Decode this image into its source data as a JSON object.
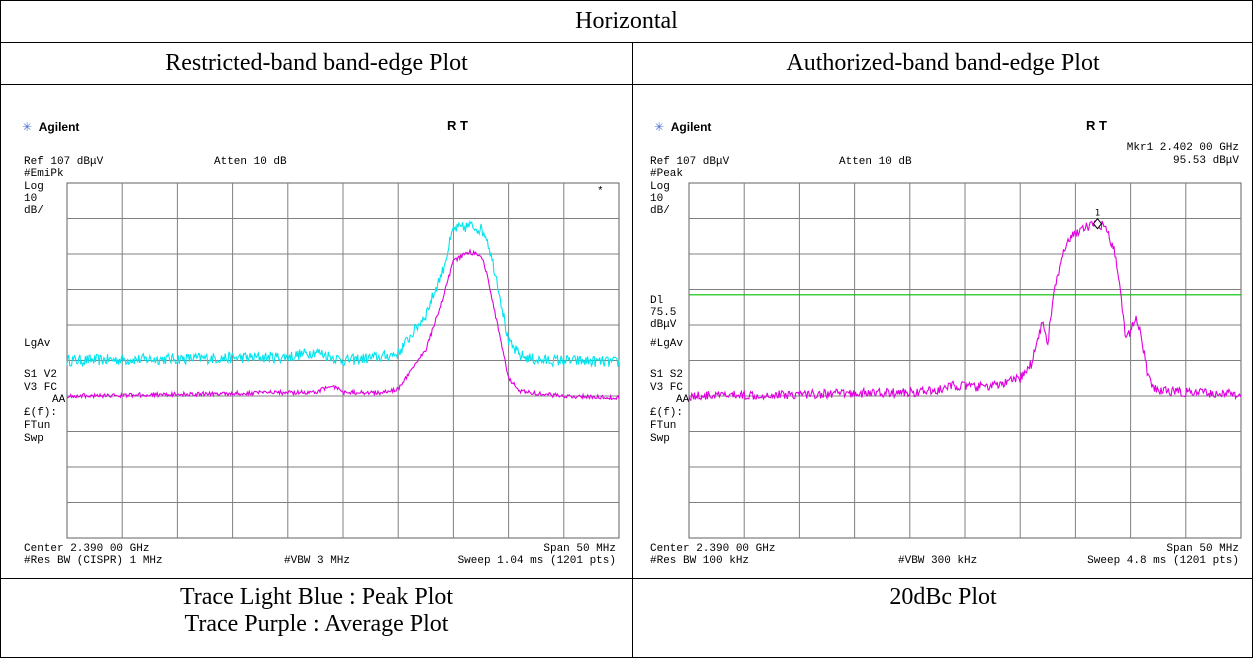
{
  "header": "Horizontal",
  "titles": {
    "left": "Restricted-band band-edge Plot",
    "right": "Authorized-band band-edge Plot"
  },
  "captions": {
    "left_line1": "Trace Light Blue : Peak Plot",
    "left_line2": "Trace Purple : Average Plot",
    "right": "20dBc Plot"
  },
  "colors": {
    "peak_trace": "#00e5ee",
    "avg_trace": "#e000e0",
    "display_line": "#00c000",
    "grid": "#808080"
  },
  "left_plot": {
    "brand": "Agilent",
    "rt": "R  T",
    "ref": "Ref 107 dBμV",
    "atten": "Atten 10 dB",
    "detector": "#EmiPk",
    "scale_type": "Log",
    "scale_value": "10",
    "scale_unit": "dB/",
    "lgav": "LgAv",
    "s1": "S1  V2",
    "v3": "V3  FC",
    "aa": "AA",
    "ef": "£(f):",
    "ftun": "FTun",
    "swp": "Swp",
    "star": "*",
    "center": "Center 2.390 00 GHz",
    "span": "Span 50 MHz",
    "rbw": "#Res BW (CISPR) 1 MHz",
    "vbw": "#VBW 3 MHz",
    "sweep": "Sweep 1.04 ms (1201 pts)"
  },
  "right_plot": {
    "brand": "Agilent",
    "rt": "R  T",
    "marker_freq": "Mkr1  2.402 00 GHz",
    "marker_level": "95.53 dBμV",
    "marker_num": "1",
    "ref": "Ref 107 dBμV",
    "atten": "Atten 10 dB",
    "detector": "#Peak",
    "scale_type": "Log",
    "scale_value": "10",
    "scale_unit": "dB/",
    "dl": "Dl",
    "dl_value": "75.5",
    "dl_unit": "dBμV",
    "lgav": "#LgAv",
    "s1": "S1  S2",
    "v3": "V3  FC",
    "aa": "AA",
    "ef": "£(f):",
    "ftun": "FTun",
    "swp": "Swp",
    "center": "Center 2.390 00 GHz",
    "span": "Span 50 MHz",
    "rbw": "#Res BW 100 kHz",
    "vbw": "#VBW 300 kHz",
    "sweep": "Sweep 4.8 ms (1201 pts)"
  },
  "chart_data": [
    {
      "type": "line",
      "title": "Restricted-band band-edge Plot",
      "x_unit": "GHz",
      "y_unit": "dBμV",
      "xlim": [
        2.365,
        2.415
      ],
      "ylim": [
        7,
        107
      ],
      "grid": true,
      "series": [
        {
          "name": "Peak",
          "color": "#00e5ee",
          "x": [
            2.365,
            2.375,
            2.385,
            2.3875,
            2.39,
            2.3935,
            2.395,
            2.3975,
            2.399,
            2.4,
            2.401,
            2.4015,
            2.402,
            2.4025,
            2.403,
            2.404,
            2.405,
            2.406,
            2.407,
            2.408,
            2.41,
            2.415
          ],
          "y": [
            57,
            57.5,
            58,
            59.5,
            57,
            58,
            59,
            70,
            82,
            94,
            94.5,
            95,
            94.5,
            94,
            92,
            79,
            62,
            58.5,
            57.5,
            57,
            57,
            56.5
          ]
        },
        {
          "name": "Average",
          "color": "#e000e0",
          "x": [
            2.365,
            2.375,
            2.385,
            2.3875,
            2.389,
            2.39,
            2.3935,
            2.395,
            2.3975,
            2.399,
            2.4,
            2.401,
            2.4015,
            2.402,
            2.4025,
            2.403,
            2.404,
            2.405,
            2.406,
            2.408,
            2.41,
            2.415
          ],
          "y": [
            47,
            47.5,
            48,
            48,
            50,
            48,
            48,
            49,
            60,
            74,
            85,
            87,
            87.5,
            87,
            86.5,
            82,
            67,
            52,
            48.5,
            47.5,
            47,
            46.5
          ]
        }
      ]
    },
    {
      "type": "line",
      "title": "Authorized-band band-edge Plot",
      "x_unit": "GHz",
      "y_unit": "dBμV",
      "xlim": [
        2.365,
        2.415
      ],
      "ylim": [
        7,
        107
      ],
      "grid": true,
      "display_line": 75.5,
      "marker": {
        "x": 2.402,
        "y": 95.53
      },
      "series": [
        {
          "name": "Peak",
          "color": "#e000e0",
          "x": [
            2.365,
            2.375,
            2.385,
            2.3875,
            2.389,
            2.391,
            2.393,
            2.395,
            2.396,
            2.397,
            2.3975,
            2.398,
            2.3985,
            2.399,
            2.3995,
            2.4,
            2.4005,
            2.401,
            2.4015,
            2.402,
            2.4025,
            2.403,
            2.4035,
            2.404,
            2.4045,
            2.405,
            2.4055,
            2.406,
            2.4065,
            2.407,
            2.408,
            2.41,
            2.415
          ],
          "y": [
            47,
            47.5,
            48,
            48.5,
            50,
            49.5,
            50,
            52,
            56,
            68,
            62,
            75,
            82,
            88,
            91,
            93,
            94,
            94.5,
            95,
            95.5,
            95,
            92,
            88,
            80,
            64,
            65,
            70,
            63,
            54,
            49,
            48.5,
            48,
            47.5
          ]
        }
      ]
    }
  ]
}
